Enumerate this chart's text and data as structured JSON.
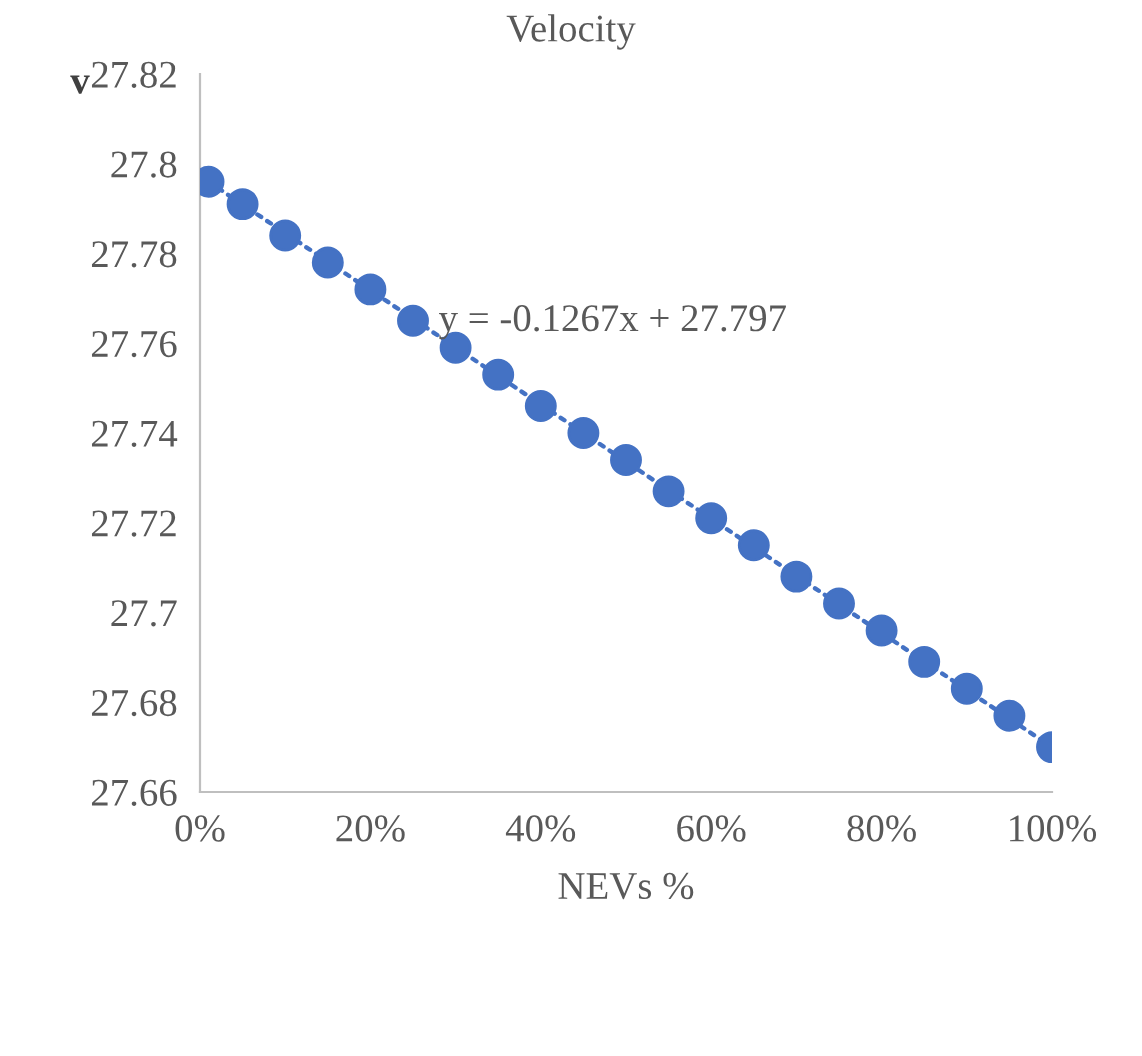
{
  "chart_data": {
    "type": "scatter",
    "title": "Velocity",
    "xlabel": "NEVs %",
    "ylabel": "v",
    "x": [
      0.01,
      0.05,
      0.1,
      0.15,
      0.2,
      0.25,
      0.3,
      0.35,
      0.4,
      0.45,
      0.5,
      0.55,
      0.6,
      0.65,
      0.7,
      0.75,
      0.8,
      0.85,
      0.9,
      0.95,
      1.0
    ],
    "series": [
      {
        "color": "#4472c4",
        "marker": "circle",
        "values": [
          27.796,
          27.791,
          27.784,
          27.778,
          27.772,
          27.765,
          27.759,
          27.753,
          27.746,
          27.74,
          27.734,
          27.727,
          27.721,
          27.715,
          27.708,
          27.702,
          27.696,
          27.689,
          27.683,
          27.677,
          27.67
        ]
      },
      {
        "type": "line",
        "color": "#4472c4",
        "line_style": "dotted",
        "x": [
          0.01,
          1.0
        ],
        "values": [
          27.796,
          27.67
        ]
      }
    ],
    "annotations": [
      "y = -0.1267x + 27.797"
    ],
    "xlim": [
      0,
      1
    ],
    "ylim": [
      27.66,
      27.82
    ],
    "xticks": [
      {
        "value": 0,
        "label": "0%"
      },
      {
        "value": 0.2,
        "label": "20%"
      },
      {
        "value": 0.4,
        "label": "40%"
      },
      {
        "value": 0.6,
        "label": "60%"
      },
      {
        "value": 0.8,
        "label": "80%"
      },
      {
        "value": 1,
        "label": "100%"
      }
    ],
    "yticks": [
      {
        "value": 27.66,
        "label": "27.66"
      },
      {
        "value": 27.68,
        "label": "27.68"
      },
      {
        "value": 27.7,
        "label": "27.7"
      },
      {
        "value": 27.72,
        "label": "27.72"
      },
      {
        "value": 27.74,
        "label": "27.74"
      },
      {
        "value": 27.76,
        "label": "27.76"
      },
      {
        "value": 27.78,
        "label": "27.78"
      },
      {
        "value": 27.8,
        "label": "27.8"
      },
      {
        "value": 27.82,
        "label": "27.82"
      }
    ],
    "grid": false,
    "legend": false
  }
}
